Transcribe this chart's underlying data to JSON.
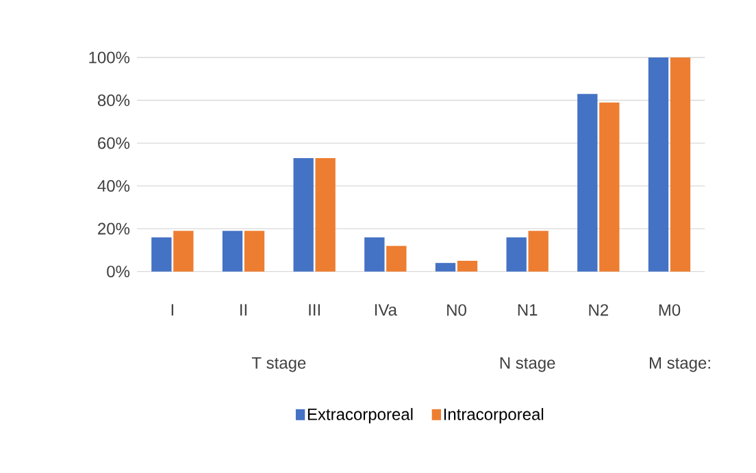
{
  "chart_data": {
    "type": "bar",
    "categories": [
      "I",
      "II",
      "III",
      "IVa",
      "N0",
      "N1",
      "N2",
      "M0"
    ],
    "series": [
      {
        "name": "Extracorporeal",
        "color": "#4472c4",
        "values": [
          16,
          19,
          53,
          16,
          4,
          16,
          83,
          100
        ]
      },
      {
        "name": "Intracorporeal",
        "color": "#ed7d31",
        "values": [
          19,
          19,
          53,
          12,
          5,
          19,
          79,
          100
        ]
      }
    ],
    "ylim": [
      0,
      100
    ],
    "yticks": [
      {
        "value": 0,
        "label": "0%"
      },
      {
        "value": 20,
        "label": "20%"
      },
      {
        "value": 40,
        "label": "40%"
      },
      {
        "value": 60,
        "label": "60%"
      },
      {
        "value": 80,
        "label": "80%"
      },
      {
        "value": 100,
        "label": "100%"
      }
    ],
    "annotations": [
      "T stage",
      "N stage",
      "M stage:"
    ],
    "grid": "y",
    "legend": "bottom"
  }
}
